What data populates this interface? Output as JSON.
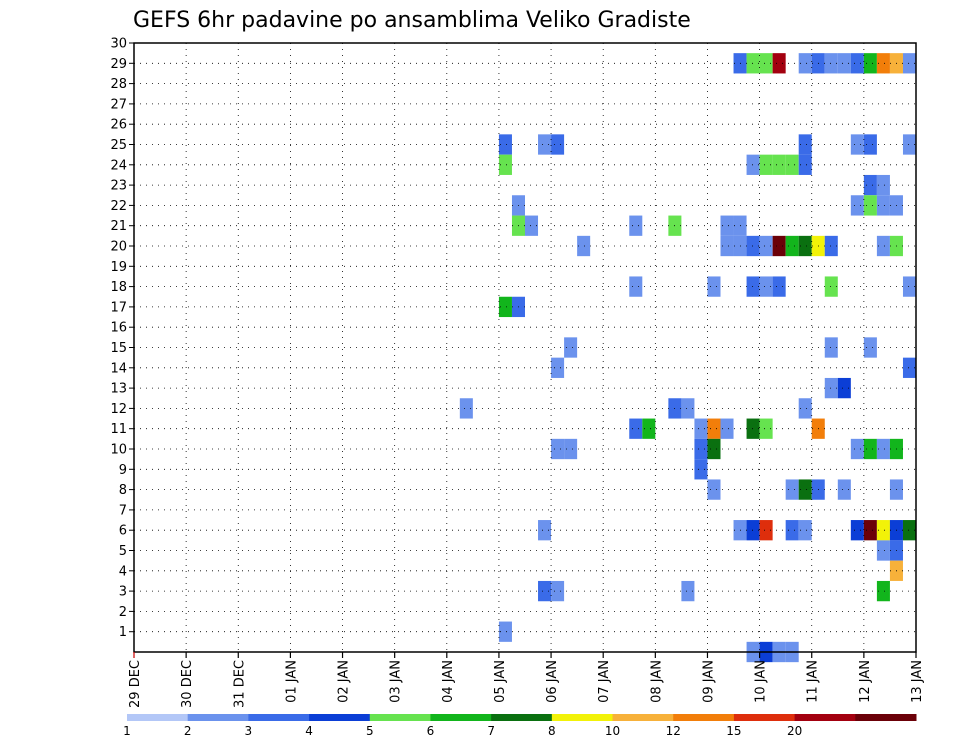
{
  "chart_data": {
    "type": "heatmap",
    "title": "GEFS 6hr padavine po ansamblima Veliko Gradiste",
    "x_tick_labels": [
      "29 DEC",
      "30 DEC",
      "31 DEC",
      "01 JAN",
      "02 JAN",
      "03 JAN",
      "04 JAN",
      "05 JAN",
      "06 JAN",
      "07 JAN",
      "08 JAN",
      "09 JAN",
      "10 JAN",
      "11 JAN",
      "12 JAN",
      "13 JAN"
    ],
    "y_tick_labels": [
      "1",
      "2",
      "3",
      "4",
      "5",
      "6",
      "7",
      "8",
      "9",
      "10",
      "11",
      "12",
      "13",
      "14",
      "15",
      "16",
      "17",
      "18",
      "19",
      "20",
      "21",
      "22",
      "23",
      "24",
      "25",
      "26",
      "27",
      "28",
      "29",
      "30"
    ],
    "steps_per_day": 4,
    "xlim": [
      0,
      60
    ],
    "ylim": [
      0,
      30
    ],
    "grid": true,
    "legend_position": "bottom",
    "legend_thresholds": [
      "1",
      "2",
      "3",
      "4",
      "5",
      "6",
      "7",
      "8",
      "10",
      "12",
      "15",
      "20"
    ],
    "legend_colors": [
      "#b3c7f7",
      "#6b92ed",
      "#3a6be8",
      "#0b3ed6",
      "#66e34f",
      "#12b51c",
      "#0a7010",
      "#f2f208",
      "#f7b13a",
      "#f27e0a",
      "#de2e0c",
      "#a3000f",
      "#6b0008"
    ],
    "cells": [
      [
        46,
        29,
        2
      ],
      [
        47,
        29,
        4
      ],
      [
        48,
        29,
        4
      ],
      [
        49,
        29,
        11
      ],
      [
        51,
        29,
        1
      ],
      [
        52,
        29,
        2
      ],
      [
        53,
        29,
        1
      ],
      [
        54,
        29,
        1
      ],
      [
        55,
        29,
        2
      ],
      [
        56,
        29,
        5
      ],
      [
        57,
        29,
        9
      ],
      [
        58,
        29,
        8
      ],
      [
        59,
        29,
        1
      ],
      [
        28,
        25,
        2
      ],
      [
        31,
        25,
        1
      ],
      [
        32,
        25,
        2
      ],
      [
        51,
        25,
        2
      ],
      [
        55,
        25,
        1
      ],
      [
        56,
        25,
        2
      ],
      [
        59,
        25,
        1
      ],
      [
        28,
        24,
        4
      ],
      [
        47,
        24,
        1
      ],
      [
        48,
        24,
        4
      ],
      [
        49,
        24,
        4
      ],
      [
        50,
        24,
        4
      ],
      [
        51,
        24,
        2
      ],
      [
        56,
        23,
        2
      ],
      [
        57,
        23,
        1
      ],
      [
        29,
        22,
        1
      ],
      [
        55,
        22,
        1
      ],
      [
        56,
        22,
        4
      ],
      [
        57,
        22,
        1
      ],
      [
        58,
        22,
        1
      ],
      [
        29,
        21,
        4
      ],
      [
        30,
        21,
        1
      ],
      [
        38,
        21,
        1
      ],
      [
        41,
        21,
        4
      ],
      [
        45,
        21,
        1
      ],
      [
        46,
        21,
        1
      ],
      [
        34,
        20,
        1
      ],
      [
        45,
        20,
        1
      ],
      [
        46,
        20,
        1
      ],
      [
        47,
        20,
        2
      ],
      [
        48,
        20,
        1
      ],
      [
        49,
        20,
        12
      ],
      [
        50,
        20,
        5
      ],
      [
        51,
        20,
        6
      ],
      [
        52,
        20,
        7
      ],
      [
        53,
        20,
        2
      ],
      [
        57,
        20,
        1
      ],
      [
        58,
        20,
        4
      ],
      [
        38,
        18,
        1
      ],
      [
        44,
        18,
        1
      ],
      [
        47,
        18,
        2
      ],
      [
        48,
        18,
        1
      ],
      [
        49,
        18,
        2
      ],
      [
        53,
        18,
        4
      ],
      [
        59,
        18,
        1
      ],
      [
        28,
        17,
        5
      ],
      [
        29,
        17,
        2
      ],
      [
        33,
        15,
        1
      ],
      [
        53,
        15,
        1
      ],
      [
        56,
        15,
        1
      ],
      [
        32,
        14,
        1
      ],
      [
        59,
        14,
        2
      ],
      [
        53,
        13,
        1
      ],
      [
        54,
        13,
        3
      ],
      [
        25,
        12,
        1
      ],
      [
        41,
        12,
        2
      ],
      [
        42,
        12,
        1
      ],
      [
        51,
        12,
        1
      ],
      [
        38,
        11,
        2
      ],
      [
        39,
        11,
        5
      ],
      [
        43,
        11,
        1
      ],
      [
        44,
        11,
        9
      ],
      [
        45,
        11,
        1
      ],
      [
        47,
        11,
        6
      ],
      [
        48,
        11,
        4
      ],
      [
        52,
        11,
        9
      ],
      [
        32,
        10,
        1
      ],
      [
        33,
        10,
        1
      ],
      [
        43,
        10,
        2
      ],
      [
        44,
        10,
        6
      ],
      [
        55,
        10,
        1
      ],
      [
        56,
        10,
        5
      ],
      [
        57,
        10,
        1
      ],
      [
        58,
        10,
        5
      ],
      [
        43,
        9,
        2
      ],
      [
        44,
        8,
        1
      ],
      [
        50,
        8,
        1
      ],
      [
        51,
        8,
        6
      ],
      [
        52,
        8,
        2
      ],
      [
        54,
        8,
        1
      ],
      [
        58,
        8,
        1
      ],
      [
        31,
        6,
        1
      ],
      [
        46,
        6,
        1
      ],
      [
        47,
        6,
        3
      ],
      [
        48,
        6,
        10
      ],
      [
        50,
        6,
        2
      ],
      [
        51,
        6,
        1
      ],
      [
        55,
        6,
        3
      ],
      [
        56,
        6,
        12
      ],
      [
        57,
        6,
        7
      ],
      [
        58,
        6,
        3
      ],
      [
        59,
        6,
        6
      ],
      [
        57,
        5,
        1
      ],
      [
        58,
        5,
        2
      ],
      [
        58,
        4,
        8
      ],
      [
        31,
        3,
        2
      ],
      [
        32,
        3,
        1
      ],
      [
        42,
        3,
        1
      ],
      [
        57,
        3,
        5
      ],
      [
        28,
        1,
        1
      ],
      [
        47,
        0,
        1
      ],
      [
        48,
        0,
        3
      ],
      [
        49,
        0,
        1
      ],
      [
        50,
        0,
        1
      ]
    ]
  }
}
